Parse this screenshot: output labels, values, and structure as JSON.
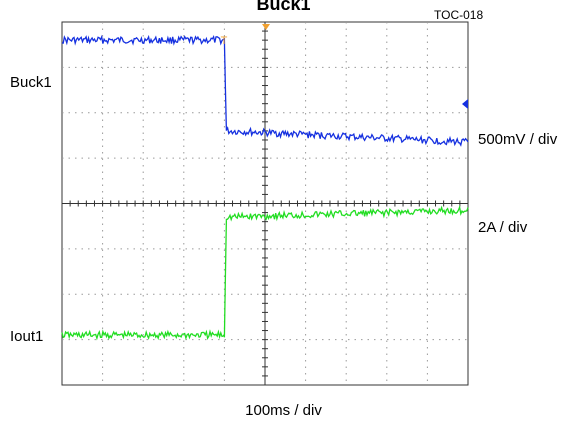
{
  "chart_data": {
    "type": "line",
    "title": "Buck1",
    "figure_code": "TOC-018",
    "x_scale": "100ms / div",
    "x_divisions": 10,
    "y_divisions": 8,
    "grid": true,
    "trigger_marker": "T",
    "channels": [
      {
        "name": "Buck1",
        "scale": "500mV / div",
        "color": "#1530e0",
        "points": [
          [
            0,
            7.6
          ],
          [
            4.0,
            7.6
          ],
          [
            4.05,
            5.6
          ],
          [
            10,
            5.35
          ]
        ]
      },
      {
        "name": "Iout1",
        "scale": "2A / div",
        "color": "#22dd22",
        "points": [
          [
            0,
            1.1
          ],
          [
            4.0,
            1.1
          ],
          [
            4.05,
            3.7
          ],
          [
            10,
            3.85
          ]
        ]
      }
    ]
  }
}
